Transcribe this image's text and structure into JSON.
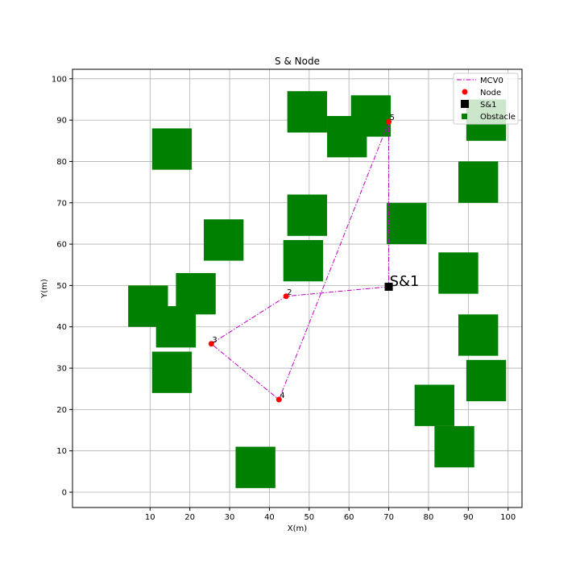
{
  "chart_data": {
    "type": "scatter",
    "title": "S & Node",
    "xlabel": "X(m)",
    "ylabel": "Y(m)",
    "xlim": [
      -9.5,
      103.5
    ],
    "ylim": [
      -3.7,
      102.3
    ],
    "xticks": [
      10,
      20,
      30,
      40,
      50,
      60,
      70,
      80,
      90,
      100
    ],
    "yticks": [
      0,
      10,
      20,
      30,
      40,
      50,
      60,
      70,
      80,
      90,
      100
    ],
    "grid": true,
    "legend_position": "top-right",
    "legend": [
      {
        "label": "MCV0",
        "marker": "line-dashdot",
        "color": "#bf00bf"
      },
      {
        "label": "Node",
        "marker": "circle",
        "color": "#ff0000"
      },
      {
        "label": "S&1",
        "marker": "square",
        "color": "#000000"
      },
      {
        "label": "Obstacle",
        "marker": "square",
        "color": "#008000"
      }
    ],
    "obstacles": [
      {
        "x0": 10.5,
        "x1": 20.5,
        "y0": 78,
        "y1": 88
      },
      {
        "x0": 23.5,
        "x1": 33.5,
        "y0": 56,
        "y1": 66
      },
      {
        "x0": 4.5,
        "x1": 14.5,
        "y0": 40,
        "y1": 50
      },
      {
        "x0": 16.5,
        "x1": 26.5,
        "y0": 43,
        "y1": 53
      },
      {
        "x0": 11.5,
        "x1": 21.5,
        "y0": 35,
        "y1": 45
      },
      {
        "x0": 10.5,
        "x1": 20.5,
        "y0": 24,
        "y1": 34
      },
      {
        "x0": 31.5,
        "x1": 41.5,
        "y0": 1,
        "y1": 11
      },
      {
        "x0": 44.5,
        "x1": 54.5,
        "y0": 87,
        "y1": 97
      },
      {
        "x0": 54.5,
        "x1": 64.5,
        "y0": 81,
        "y1": 91
      },
      {
        "x0": 60.5,
        "x1": 70.5,
        "y0": 86,
        "y1": 96
      },
      {
        "x0": 44.5,
        "x1": 54.5,
        "y0": 62,
        "y1": 72
      },
      {
        "x0": 43.5,
        "x1": 53.5,
        "y0": 51,
        "y1": 61
      },
      {
        "x0": 69.5,
        "x1": 79.5,
        "y0": 60,
        "y1": 70
      },
      {
        "x0": 87.5,
        "x1": 97.5,
        "y0": 70,
        "y1": 80
      },
      {
        "x0": 89.5,
        "x1": 99.5,
        "y0": 85,
        "y1": 95
      },
      {
        "x0": 82.5,
        "x1": 92.5,
        "y0": 48,
        "y1": 58
      },
      {
        "x0": 87.5,
        "x1": 97.5,
        "y0": 33,
        "y1": 43
      },
      {
        "x0": 89.5,
        "x1": 99.5,
        "y0": 22,
        "y1": 32
      },
      {
        "x0": 76.5,
        "x1": 86.5,
        "y0": 16,
        "y1": 26
      },
      {
        "x0": 81.5,
        "x1": 91.5,
        "y0": 6,
        "y1": 16
      }
    ],
    "nodes": [
      {
        "label": "5",
        "x": 70.0,
        "y": 89.6
      },
      {
        "label": "2",
        "x": 44.2,
        "y": 47.4
      },
      {
        "label": "3",
        "x": 25.4,
        "y": 35.9
      },
      {
        "label": "4",
        "x": 42.4,
        "y": 22.4
      }
    ],
    "station": {
      "label": "S&1",
      "x": 70.0,
      "y": 49.7
    },
    "series": [
      {
        "name": "MCV0",
        "x": [
          70.0,
          44.2,
          25.4,
          42.4,
          70.0,
          70.0
        ],
        "y": [
          49.7,
          47.4,
          35.9,
          22.4,
          89.6,
          49.7
        ]
      }
    ]
  }
}
